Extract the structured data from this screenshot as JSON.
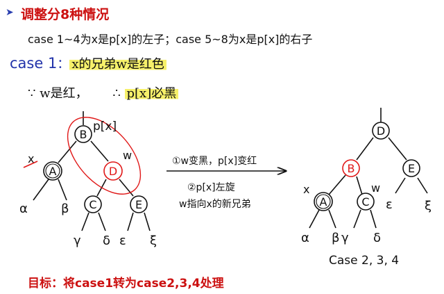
{
  "heading": {
    "bullet_icon": "triangle-bullet-icon",
    "text": "调整分8种情况"
  },
  "line_cases": "case 1~4为x是p[x]的左子；case 5~8为x是p[x]的右子",
  "case1": {
    "label": "case 1",
    "colon": "：",
    "desc": "x的兄弟w是红色"
  },
  "because": {
    "since": "∵ w是红，",
    "therefore": "∴",
    "conclusion": "p[x]必黑"
  },
  "left_tree": {
    "nodes": {
      "B": "B",
      "A": "A",
      "D": "D",
      "C": "C",
      "E": "E"
    },
    "labels": {
      "px": "p[x]",
      "x": "x",
      "w": "w"
    },
    "leaves": {
      "alpha": "α",
      "beta": "β",
      "gamma": "γ",
      "delta": "δ",
      "epsilon": "ε",
      "xi": "ξ"
    }
  },
  "steps": {
    "step1": "①w变黑，p[x]变红",
    "step2": "②p[x]左旋",
    "step3": "w指向x的新兄弟"
  },
  "right_tree": {
    "nodes": {
      "D": "D",
      "B": "B",
      "E": "E",
      "A": "A",
      "C": "C"
    },
    "labels": {
      "x": "x",
      "w": "w"
    },
    "leaves": {
      "alpha": "α",
      "beta": "β",
      "gamma": "γ",
      "delta": "δ",
      "epsilon": "ε",
      "xi": "ξ"
    },
    "caption": "Case 2, 3, 4"
  },
  "goal": "目标：将case1转为case2,3,4处理",
  "colors": {
    "red": "#e01818",
    "black": "#111111",
    "highlight": "#f6f06a",
    "blue": "#2233aa"
  }
}
